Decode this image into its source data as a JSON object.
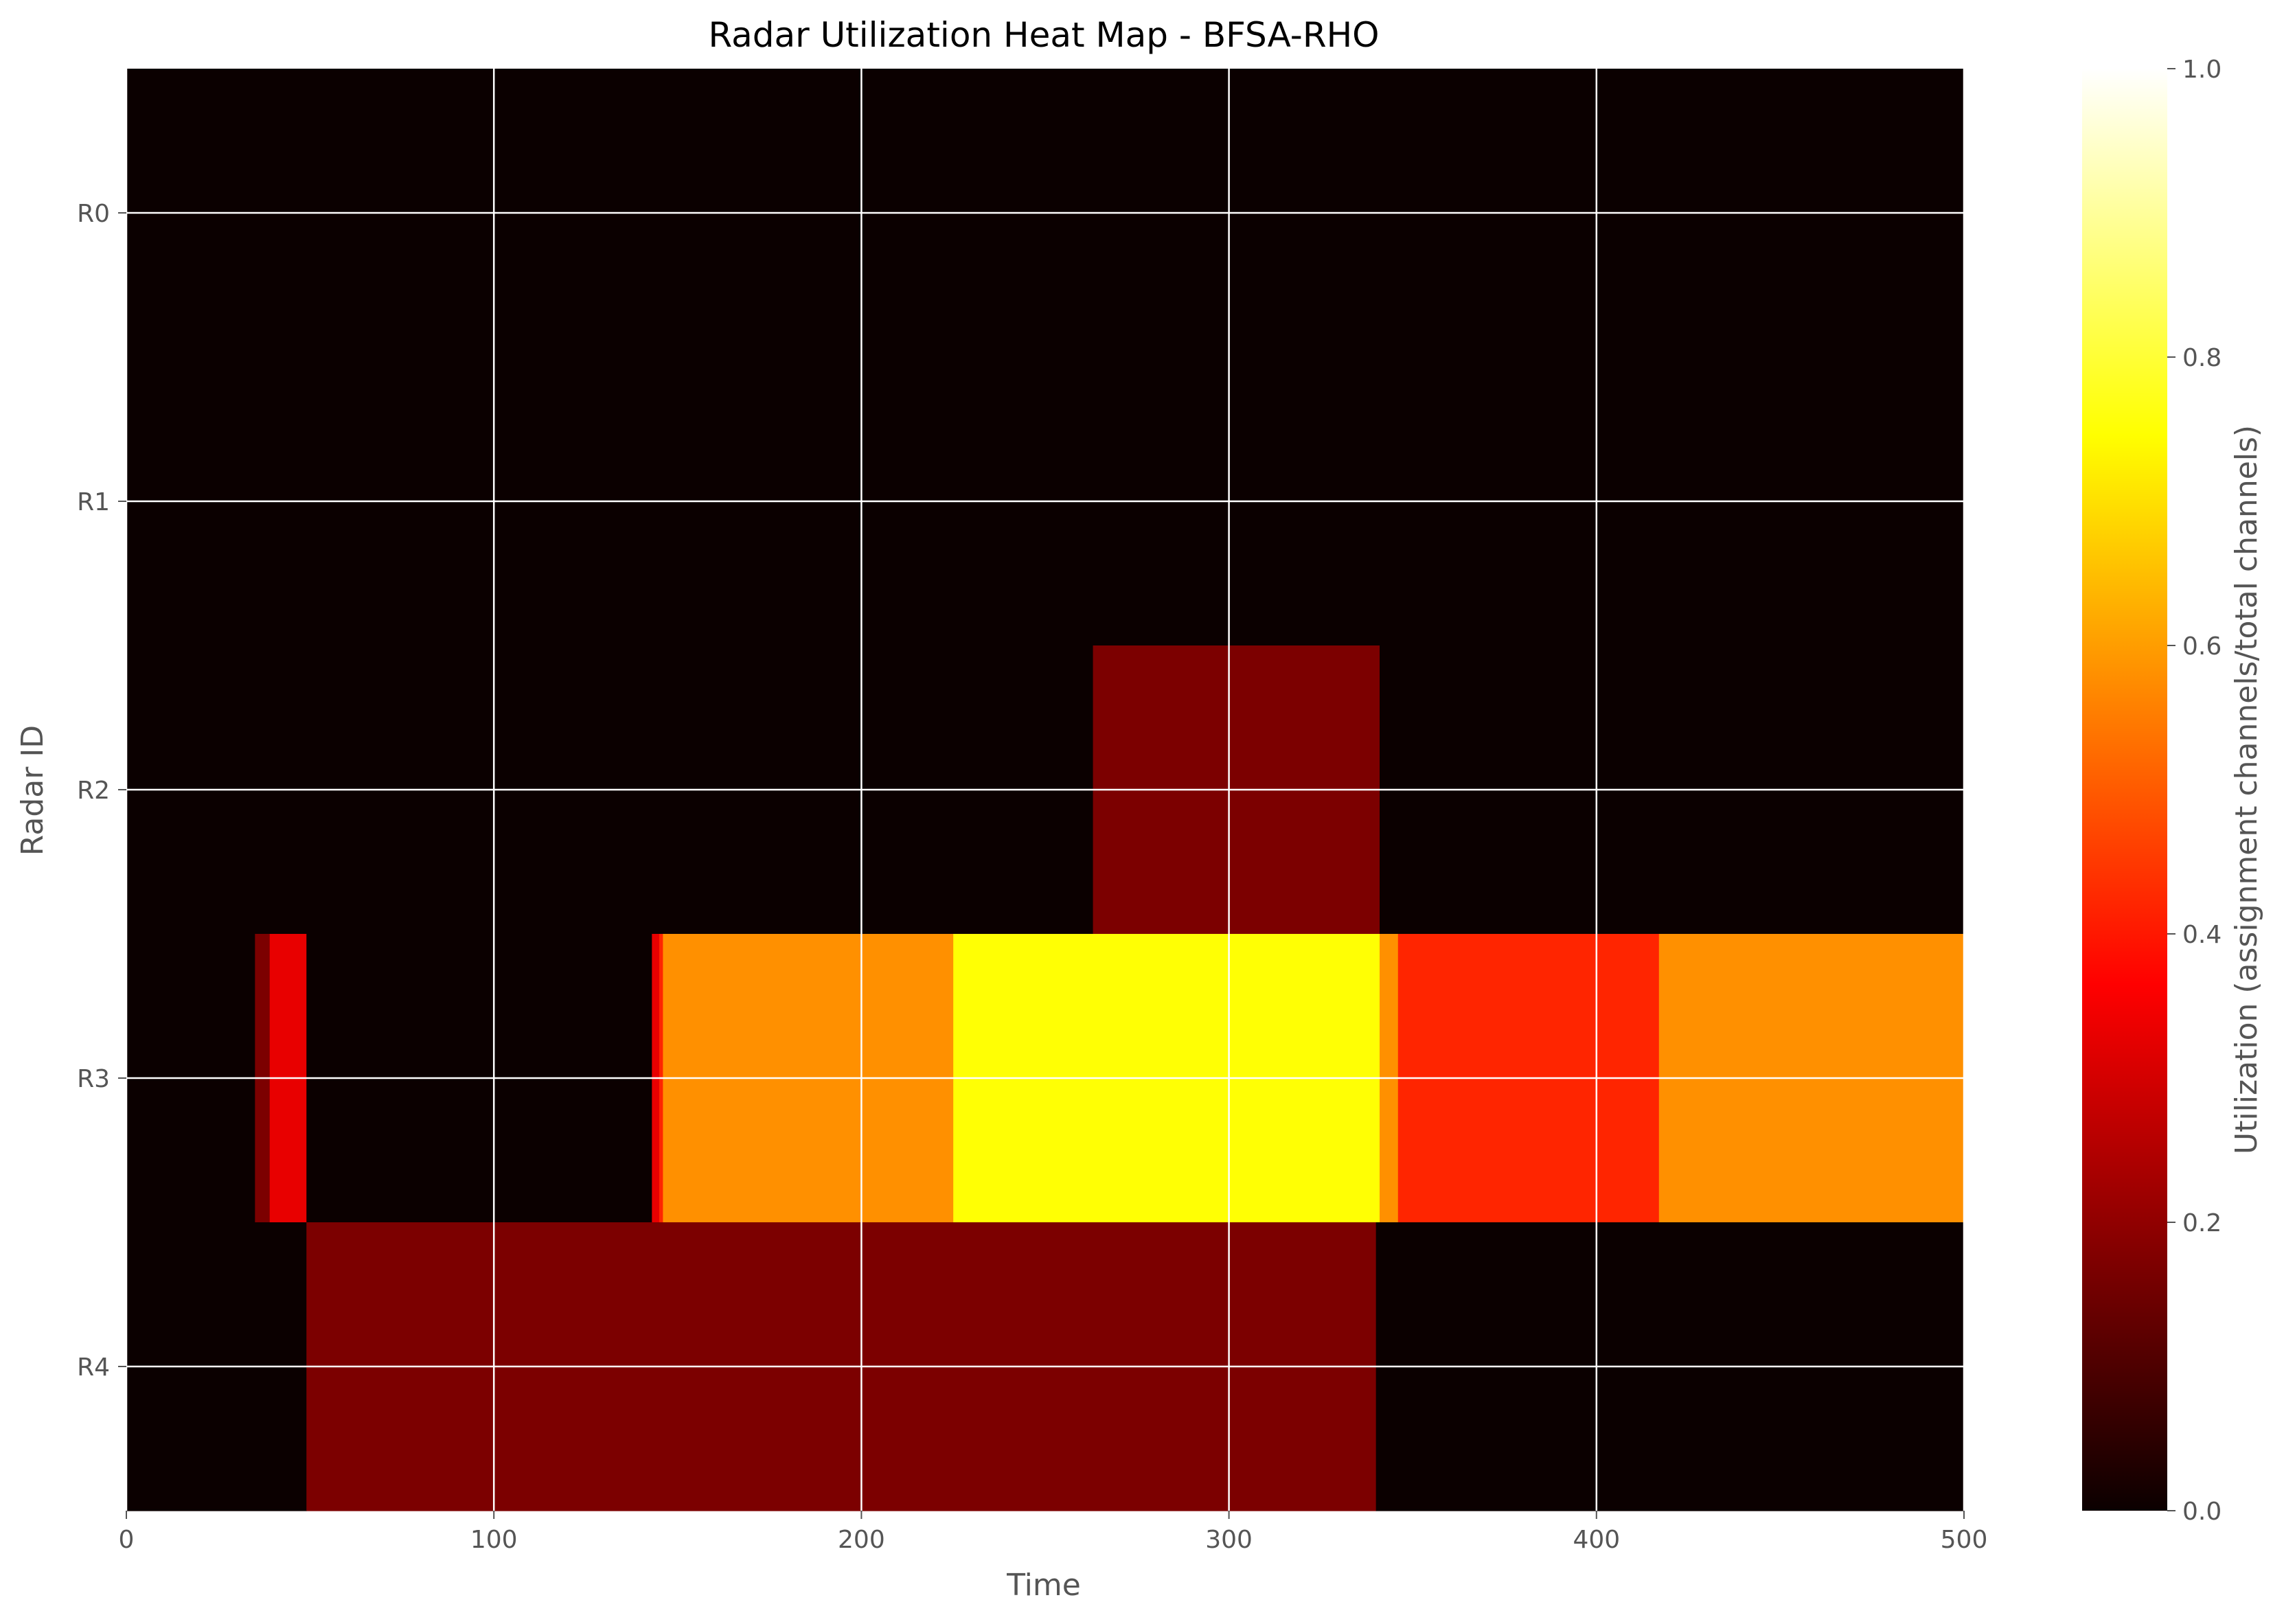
{
  "chart_data": {
    "type": "heatmap",
    "title": "Radar Utilization Heat Map - BFSA-RHO",
    "xlabel": "Time",
    "ylabel": "Radar ID",
    "colorbar_label": "Utilization (assignment channels/total channels)",
    "colormap": "hot",
    "xlim": [
      0,
      500
    ],
    "clim": [
      0,
      1
    ],
    "x_ticks": [
      0,
      100,
      200,
      300,
      400,
      500
    ],
    "colorbar_ticks": [
      "0.0",
      "0.2",
      "0.4",
      "0.6",
      "0.8",
      "1.0"
    ],
    "rows": [
      "R0",
      "R1",
      "R2",
      "R3",
      "R4"
    ],
    "grid": true,
    "segments": [
      {
        "radar": "R0",
        "start": 0,
        "end": 500,
        "value": 0.0
      },
      {
        "radar": "R1",
        "start": 0,
        "end": 500,
        "value": 0.0
      },
      {
        "radar": "R2",
        "start": 0,
        "end": 263,
        "value": 0.0
      },
      {
        "radar": "R2",
        "start": 263,
        "end": 341,
        "value": 0.17
      },
      {
        "radar": "R2",
        "start": 341,
        "end": 500,
        "value": 0.0
      },
      {
        "radar": "R3",
        "start": 0,
        "end": 35,
        "value": 0.0
      },
      {
        "radar": "R3",
        "start": 35,
        "end": 39,
        "value": 0.17
      },
      {
        "radar": "R3",
        "start": 39,
        "end": 49,
        "value": 0.33
      },
      {
        "radar": "R3",
        "start": 49,
        "end": 143,
        "value": 0.0
      },
      {
        "radar": "R3",
        "start": 143,
        "end": 145,
        "value": 0.33
      },
      {
        "radar": "R3",
        "start": 145,
        "end": 146,
        "value": 0.42
      },
      {
        "radar": "R3",
        "start": 146,
        "end": 225,
        "value": 0.58
      },
      {
        "radar": "R3",
        "start": 225,
        "end": 341,
        "value": 0.75
      },
      {
        "radar": "R3",
        "start": 341,
        "end": 346,
        "value": 0.58
      },
      {
        "radar": "R3",
        "start": 346,
        "end": 417,
        "value": 0.42
      },
      {
        "radar": "R3",
        "start": 417,
        "end": 500,
        "value": 0.58
      },
      {
        "radar": "R4",
        "start": 0,
        "end": 49,
        "value": 0.0
      },
      {
        "radar": "R4",
        "start": 49,
        "end": 340,
        "value": 0.17
      },
      {
        "radar": "R4",
        "start": 340,
        "end": 500,
        "value": 0.0
      }
    ]
  }
}
